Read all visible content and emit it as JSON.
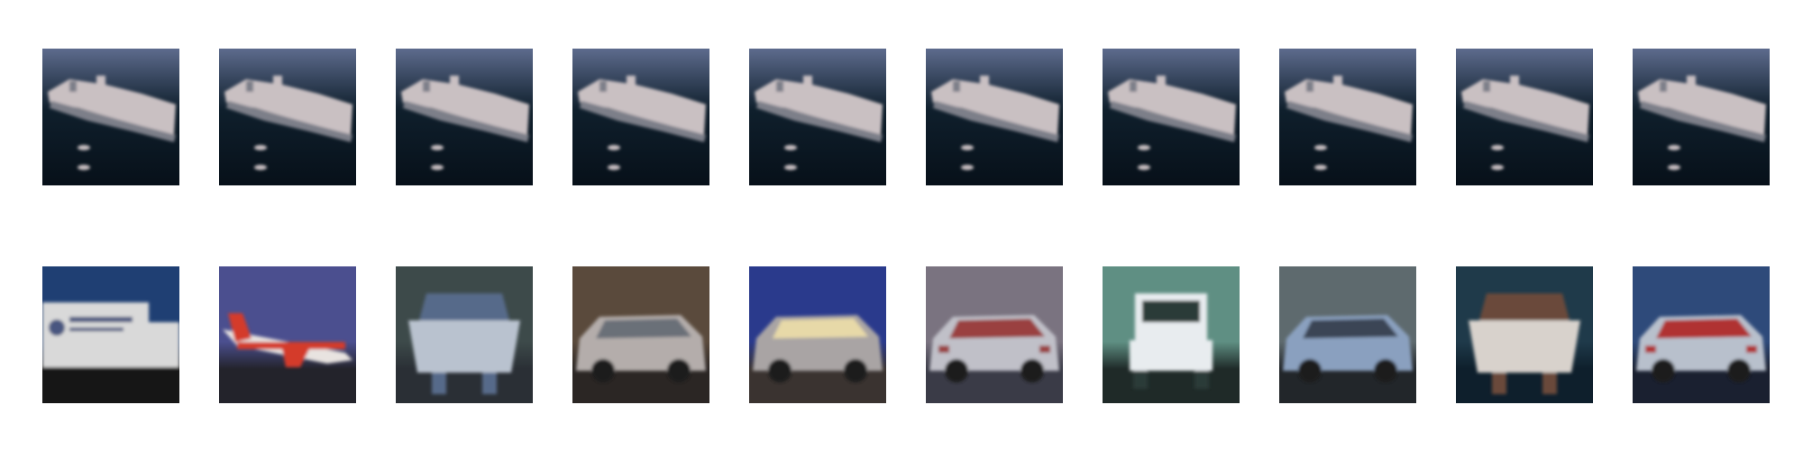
{
  "figure": {
    "background": "#ffffff",
    "rows": [
      {
        "name": "top-row",
        "images": [
          {
            "subject": "ship",
            "palette": {
              "sky": "#5d6b8d",
              "sea": "#0f1f2c",
              "deep": "#071019",
              "hull": "#c9c0c2",
              "shadow": "#7d7f89"
            }
          },
          {
            "subject": "ship",
            "palette": {
              "sky": "#5d6b8d",
              "sea": "#0f1f2c",
              "deep": "#071019",
              "hull": "#c9c0c2",
              "shadow": "#7d7f89"
            }
          },
          {
            "subject": "ship",
            "palette": {
              "sky": "#5d6b8d",
              "sea": "#0f1f2c",
              "deep": "#071019",
              "hull": "#c9c0c2",
              "shadow": "#7d7f89"
            }
          },
          {
            "subject": "ship",
            "palette": {
              "sky": "#5d6b8d",
              "sea": "#0f1f2c",
              "deep": "#071019",
              "hull": "#c9c0c2",
              "shadow": "#7d7f89"
            }
          },
          {
            "subject": "ship",
            "palette": {
              "sky": "#5d6b8d",
              "sea": "#0f1f2c",
              "deep": "#071019",
              "hull": "#c9c0c2",
              "shadow": "#7d7f89"
            }
          },
          {
            "subject": "ship",
            "palette": {
              "sky": "#5d6b8d",
              "sea": "#0f1f2c",
              "deep": "#071019",
              "hull": "#c9c0c2",
              "shadow": "#7d7f89"
            }
          },
          {
            "subject": "ship",
            "palette": {
              "sky": "#5d6b8d",
              "sea": "#0f1f2c",
              "deep": "#071019",
              "hull": "#c9c0c2",
              "shadow": "#7d7f89"
            }
          },
          {
            "subject": "ship",
            "palette": {
              "sky": "#5d6b8d",
              "sea": "#0f1f2c",
              "deep": "#071019",
              "hull": "#c9c0c2",
              "shadow": "#7d7f89"
            }
          },
          {
            "subject": "ship",
            "palette": {
              "sky": "#5d6b8d",
              "sea": "#0f1f2c",
              "deep": "#071019",
              "hull": "#c9c0c2",
              "shadow": "#7d7f89"
            }
          },
          {
            "subject": "ship",
            "palette": {
              "sky": "#5d6b8d",
              "sea": "#0f1f2c",
              "deep": "#071019",
              "hull": "#c9c0c2",
              "shadow": "#7d7f89"
            }
          }
        ]
      },
      {
        "name": "bottom-row",
        "images": [
          {
            "subject": "truck",
            "palette": {
              "sky": "#1f3f73",
              "ground": "#141414",
              "body": "#d9d9d9",
              "accent": "#4a5680"
            }
          },
          {
            "subject": "airplane",
            "palette": {
              "sky": "#4b4f8f",
              "ground": "#23232b",
              "body": "#d43a2a",
              "accent": "#e8e3e0"
            }
          },
          {
            "subject": "boat",
            "palette": {
              "sky": "#3d4a4a",
              "ground": "#2a2f35",
              "body": "#b9c2cf",
              "accent": "#566a8a"
            }
          },
          {
            "subject": "car",
            "palette": {
              "sky": "#5a4a3c",
              "ground": "#2b2624",
              "body": "#b4adab",
              "accent": "#6b6f78"
            }
          },
          {
            "subject": "car-front",
            "palette": {
              "sky": "#2a3a8c",
              "ground": "#3a3330",
              "body": "#a9a4a4",
              "accent": "#e7d9a8"
            }
          },
          {
            "subject": "car-rear",
            "palette": {
              "sky": "#7a7380",
              "ground": "#3a3b47",
              "body": "#c0c0c8",
              "accent": "#9a4040"
            }
          },
          {
            "subject": "truck-front",
            "palette": {
              "sky": "#5f8f83",
              "ground": "#1f2a28",
              "body": "#e8ecef",
              "accent": "#2c3a37"
            }
          },
          {
            "subject": "car",
            "palette": {
              "sky": "#5e6a6e",
              "ground": "#22262a",
              "body": "#8aa0bf",
              "accent": "#3b4555"
            }
          },
          {
            "subject": "boat-people",
            "palette": {
              "sky": "#1f3a4a",
              "ground": "#0e1f2c",
              "body": "#d8d2cc",
              "accent": "#6b4a3a"
            }
          },
          {
            "subject": "car-rear",
            "palette": {
              "sky": "#2e4a7a",
              "ground": "#1a2030",
              "body": "#b8c0cc",
              "accent": "#b03030"
            }
          }
        ]
      }
    ]
  }
}
